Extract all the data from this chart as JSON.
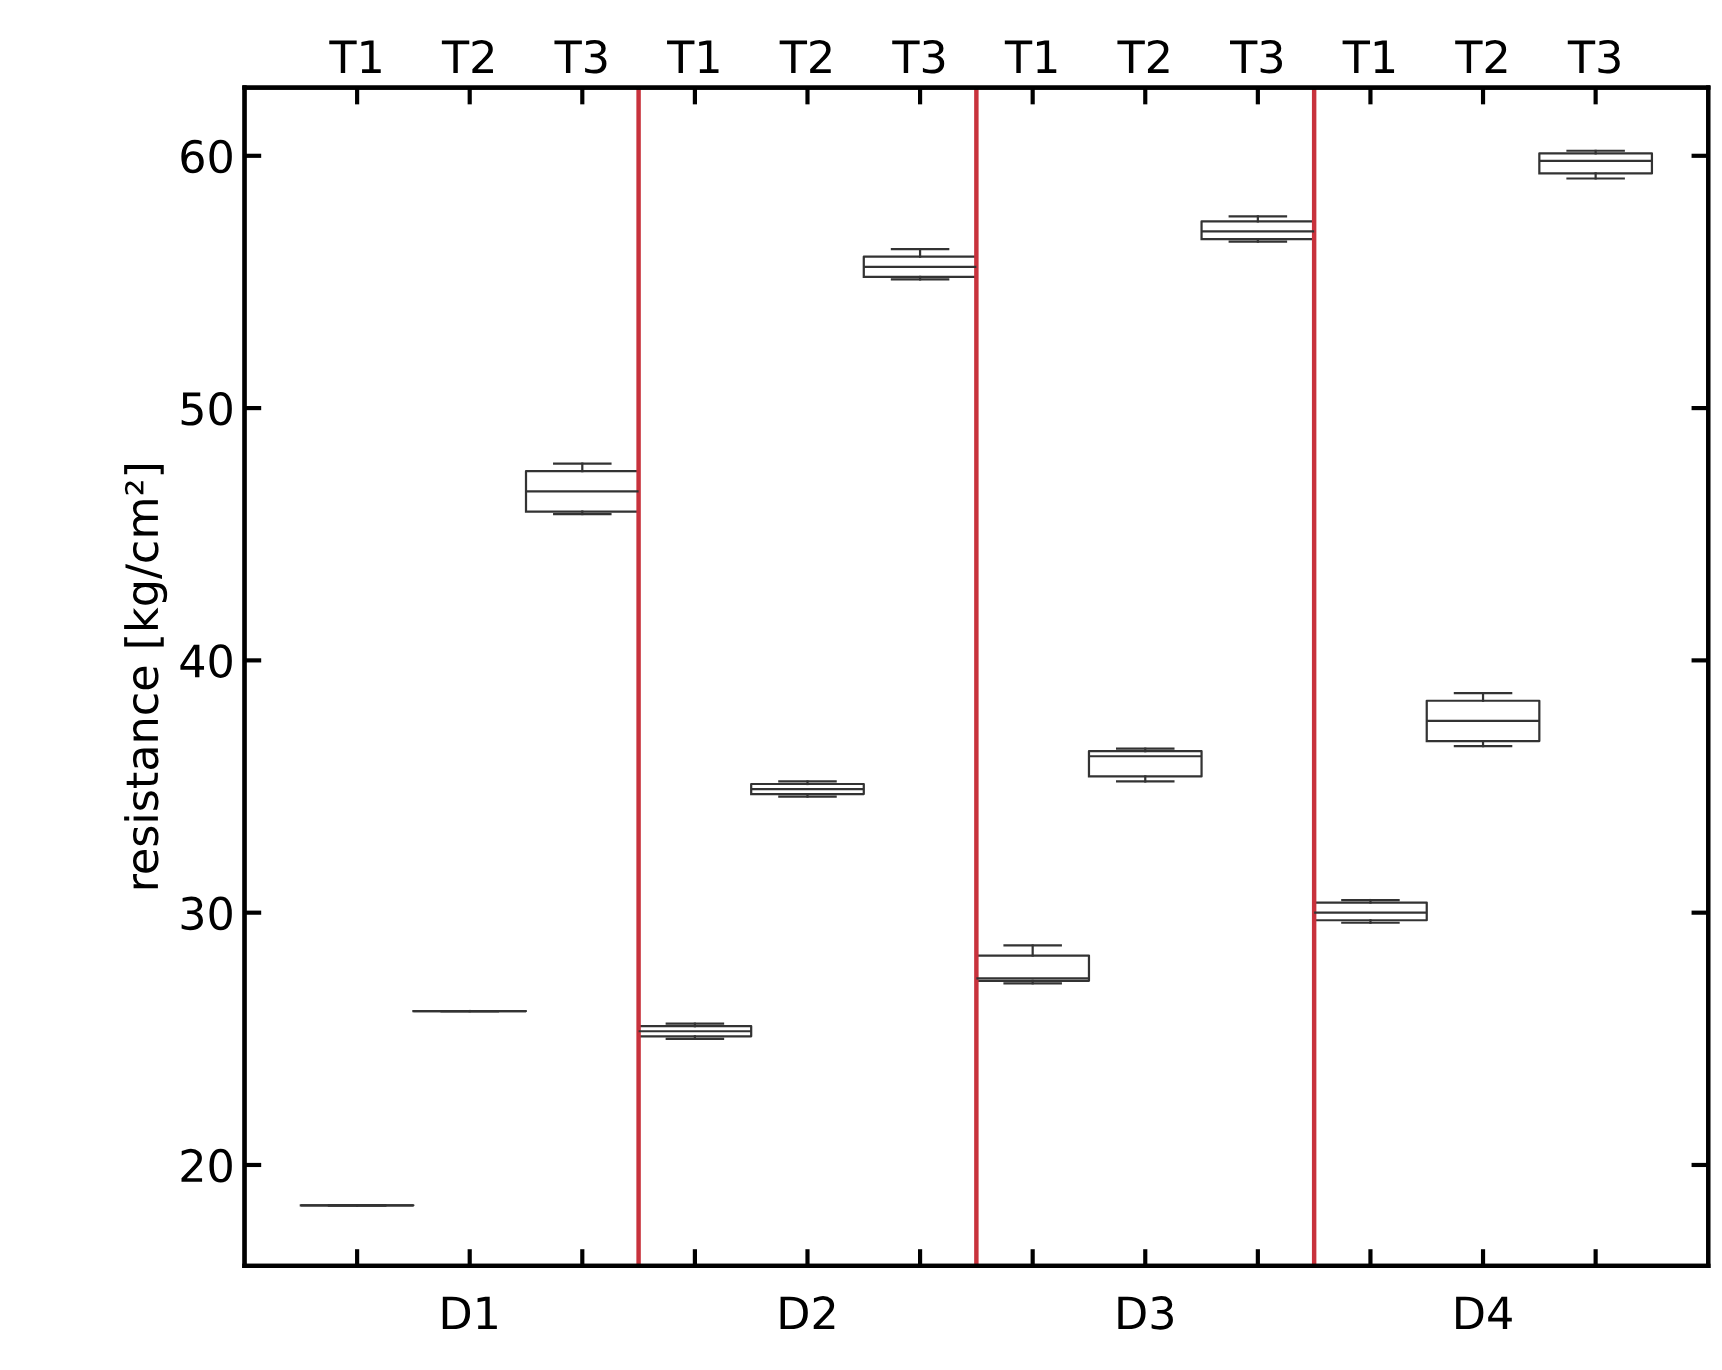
{
  "chart_data": {
    "type": "box",
    "ylabel": "resistance [kg/cm²]",
    "categories": [
      "T1",
      "T2",
      "T3",
      "T1",
      "T2",
      "T3",
      "T1",
      "T2",
      "T3",
      "T1",
      "T2",
      "T3"
    ],
    "annotations": [
      "D1",
      "D2",
      "D3",
      "D4"
    ],
    "ylim": [
      16,
      62.7
    ],
    "yticks": [
      20,
      30,
      40,
      50,
      60
    ],
    "color": "#333333",
    "boxes": [
      {
        "low": 18.4,
        "q1": 18.4,
        "median": 18.4,
        "q3": 18.4,
        "high": 18.4
      },
      {
        "low": 26.1,
        "q1": 26.1,
        "median": 26.1,
        "q3": 26.1,
        "high": 26.1
      },
      {
        "low": 45.8,
        "q1": 45.9,
        "median": 46.7,
        "q3": 47.5,
        "high": 47.8
      },
      {
        "low": 25.0,
        "q1": 25.1,
        "median": 25.3,
        "q3": 25.5,
        "high": 25.6
      },
      {
        "low": 34.6,
        "q1": 34.7,
        "median": 34.9,
        "q3": 35.1,
        "high": 35.2
      },
      {
        "low": 55.1,
        "q1": 55.2,
        "median": 55.6,
        "q3": 56.0,
        "high": 56.3
      },
      {
        "low": 27.2,
        "q1": 27.3,
        "median": 27.4,
        "q3": 28.3,
        "high": 28.7
      },
      {
        "low": 35.2,
        "q1": 35.4,
        "median": 36.2,
        "q3": 36.4,
        "high": 36.5
      },
      {
        "low": 56.6,
        "q1": 56.7,
        "median": 57.0,
        "q3": 57.4,
        "high": 57.6
      },
      {
        "low": 29.6,
        "q1": 29.7,
        "median": 30.0,
        "q3": 30.4,
        "high": 30.5
      },
      {
        "low": 36.6,
        "q1": 36.8,
        "median": 37.6,
        "q3": 38.4,
        "high": 38.7
      },
      {
        "low": 59.1,
        "q1": 59.3,
        "median": 59.8,
        "q3": 60.1,
        "high": 60.2
      }
    ],
    "grid": false
  }
}
